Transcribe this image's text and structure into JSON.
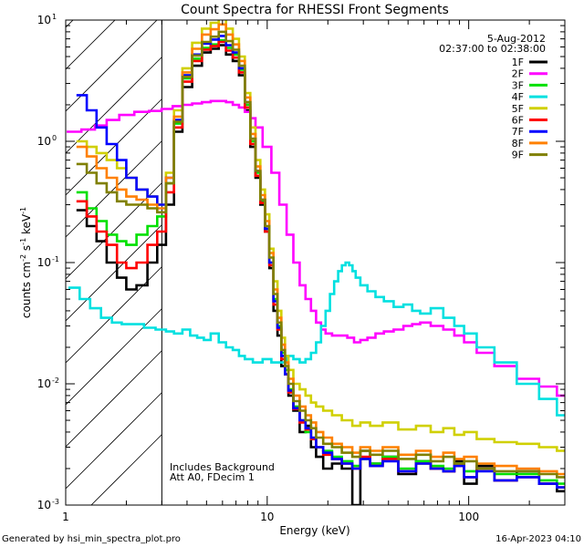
{
  "chart_data": {
    "type": "line",
    "title": "Count Spectra for RHESSI Front Segments",
    "xlabel": "Energy (keV)",
    "ylabel_parts": [
      "counts cm",
      "-2",
      " s",
      "-1",
      " keV",
      "-1"
    ],
    "x_scale": "log",
    "y_scale": "log",
    "xlim": [
      1,
      300
    ],
    "ylim": [
      0.001,
      10
    ],
    "x_tick_labels": [
      {
        "value": 1,
        "label": "1"
      },
      {
        "value": 10,
        "label": "10"
      },
      {
        "value": 100,
        "label": "100"
      }
    ],
    "y_tick_labels": [
      {
        "value": 10,
        "base": "10",
        "exp": "1"
      },
      {
        "value": 1,
        "base": "10",
        "exp": "0"
      },
      {
        "value": 0.1,
        "base": "10",
        "exp": "-1"
      },
      {
        "value": 0.01,
        "base": "10",
        "exp": "-2"
      },
      {
        "value": 0.001,
        "base": "10",
        "exp": "-3"
      }
    ],
    "hatched_region_xmax": 3,
    "date": "5-Aug-2012",
    "time_range": "02:37:00 to 02:38:00",
    "annotations": [
      "Includes Background",
      "Att A0, FDecim 1"
    ],
    "footer_left": "Generated by hsi_min_spectra_plot.pro",
    "footer_right": "16-Apr-2023 04:10",
    "legend_location": "top-right",
    "series": [
      {
        "name": "1F",
        "color": "#000000",
        "x": [
          1.2,
          1.35,
          1.5,
          1.7,
          1.9,
          2.1,
          2.4,
          2.7,
          3.0,
          3.3,
          3.6,
          4.0,
          4.5,
          5.0,
          5.5,
          6.0,
          6.5,
          7.0,
          7.5,
          8.0,
          8.5,
          9.0,
          9.5,
          10,
          10.5,
          11,
          11.5,
          12,
          12.5,
          13,
          14,
          15,
          16,
          17,
          18,
          20,
          22,
          25,
          28,
          30,
          35,
          40,
          50,
          60,
          70,
          80,
          90,
          100,
          120,
          150,
          200,
          250,
          300
        ],
        "y": [
          0.27,
          0.2,
          0.15,
          0.1,
          0.075,
          0.06,
          0.065,
          0.1,
          0.14,
          0.3,
          1.2,
          2.8,
          4.2,
          5.4,
          5.8,
          6.2,
          5.2,
          4.6,
          3.5,
          1.8,
          0.9,
          0.5,
          0.3,
          0.18,
          0.09,
          0.04,
          0.025,
          0.014,
          0.012,
          0.008,
          0.006,
          0.004,
          0.0045,
          0.003,
          0.0025,
          0.002,
          0.0022,
          0.002,
          0.001,
          0.0028,
          0.0022,
          0.0025,
          0.0018,
          0.0023,
          0.002,
          0.0019,
          0.0023,
          0.0015,
          0.0021,
          0.0016,
          0.0019,
          0.0015,
          0.0013
        ]
      },
      {
        "name": "2F",
        "color": "#ff00ff",
        "x": [
          1.1,
          1.3,
          1.5,
          1.7,
          2.0,
          2.4,
          2.8,
          3.2,
          3.6,
          4.0,
          4.5,
          5.0,
          5.5,
          6.0,
          6.5,
          7.0,
          7.5,
          8.0,
          8.5,
          9.0,
          10,
          11,
          12,
          13,
          14,
          15,
          16,
          17,
          18,
          19,
          20,
          22,
          24,
          26,
          28,
          30,
          33,
          36,
          40,
          45,
          50,
          55,
          60,
          70,
          80,
          90,
          100,
          120,
          150,
          200,
          250,
          300
        ],
        "y": [
          1.2,
          1.25,
          1.35,
          1.5,
          1.65,
          1.75,
          1.78,
          1.85,
          1.95,
          2.0,
          2.05,
          2.1,
          2.15,
          2.15,
          2.1,
          2.0,
          1.9,
          1.75,
          1.55,
          1.3,
          0.9,
          0.55,
          0.3,
          0.17,
          0.1,
          0.065,
          0.05,
          0.04,
          0.032,
          0.028,
          0.026,
          0.025,
          0.025,
          0.024,
          0.022,
          0.023,
          0.024,
          0.026,
          0.027,
          0.028,
          0.03,
          0.031,
          0.032,
          0.03,
          0.028,
          0.025,
          0.022,
          0.018,
          0.014,
          0.011,
          0.0095,
          0.008
        ]
      },
      {
        "name": "3F",
        "color": "#00e000",
        "x": [
          1.2,
          1.35,
          1.5,
          1.7,
          1.9,
          2.1,
          2.4,
          2.7,
          3.0,
          3.3,
          3.6,
          4.0,
          4.5,
          5.0,
          5.5,
          6.0,
          6.5,
          7.0,
          7.5,
          8.0,
          8.5,
          9.0,
          9.5,
          10,
          10.5,
          11,
          11.5,
          12,
          12.5,
          13,
          14,
          15,
          16,
          17,
          18,
          20,
          22,
          25,
          28,
          30,
          35,
          40,
          50,
          60,
          70,
          80,
          90,
          100,
          120,
          150,
          200,
          250,
          300
        ],
        "y": [
          0.38,
          0.28,
          0.22,
          0.17,
          0.15,
          0.14,
          0.17,
          0.2,
          0.24,
          0.45,
          1.4,
          3.3,
          4.8,
          5.9,
          6.3,
          6.8,
          5.9,
          5.2,
          3.9,
          2.0,
          1.0,
          0.55,
          0.32,
          0.19,
          0.1,
          0.05,
          0.03,
          0.018,
          0.013,
          0.009,
          0.0065,
          0.005,
          0.004,
          0.0035,
          0.003,
          0.0028,
          0.0025,
          0.0023,
          0.0021,
          0.0024,
          0.0022,
          0.0025,
          0.002,
          0.0023,
          0.0021,
          0.002,
          0.0022,
          0.0019,
          0.002,
          0.0018,
          0.0018,
          0.0016,
          0.0015
        ]
      },
      {
        "name": "4F",
        "color": "#00e0e0",
        "x": [
          1.1,
          1.25,
          1.4,
          1.6,
          1.8,
          2.0,
          2.3,
          2.6,
          3.0,
          3.3,
          3.6,
          4.0,
          4.3,
          4.7,
          5.0,
          5.5,
          6.0,
          6.5,
          7.0,
          7.5,
          8.0,
          9.0,
          10,
          11,
          12,
          13,
          14,
          15,
          16,
          17,
          18,
          19,
          20,
          21,
          22,
          23,
          24,
          25,
          26,
          27,
          28,
          30,
          33,
          36,
          40,
          45,
          50,
          55,
          60,
          70,
          80,
          90,
          100,
          120,
          150,
          200,
          250,
          300
        ],
        "y": [
          0.062,
          0.05,
          0.042,
          0.035,
          0.032,
          0.031,
          0.031,
          0.029,
          0.028,
          0.027,
          0.026,
          0.028,
          0.025,
          0.024,
          0.023,
          0.026,
          0.022,
          0.02,
          0.019,
          0.017,
          0.016,
          0.015,
          0.016,
          0.015,
          0.015,
          0.017,
          0.016,
          0.015,
          0.016,
          0.018,
          0.022,
          0.03,
          0.04,
          0.055,
          0.07,
          0.085,
          0.095,
          0.1,
          0.095,
          0.085,
          0.075,
          0.065,
          0.058,
          0.052,
          0.048,
          0.043,
          0.045,
          0.04,
          0.038,
          0.042,
          0.035,
          0.03,
          0.026,
          0.02,
          0.015,
          0.01,
          0.0075,
          0.0055
        ]
      },
      {
        "name": "5F",
        "color": "#d0d000",
        "x": [
          1.2,
          1.35,
          1.5,
          1.7,
          1.9,
          2.1,
          2.4,
          2.7,
          3.0,
          3.3,
          3.6,
          4.0,
          4.5,
          5.0,
          5.5,
          6.0,
          6.5,
          7.0,
          7.5,
          8.0,
          8.5,
          9.0,
          9.5,
          10,
          10.5,
          11,
          11.5,
          12,
          12.5,
          13,
          14,
          15,
          16,
          17,
          18,
          20,
          22,
          25,
          28,
          30,
          35,
          40,
          50,
          60,
          70,
          80,
          90,
          100,
          120,
          150,
          200,
          250,
          300
        ],
        "y": [
          1.0,
          0.9,
          0.8,
          0.7,
          0.6,
          0.5,
          0.4,
          0.35,
          0.3,
          0.55,
          1.8,
          4.0,
          6.5,
          8.5,
          9.5,
          10.5,
          8.5,
          7.0,
          5.0,
          2.5,
          1.3,
          0.7,
          0.4,
          0.25,
          0.13,
          0.07,
          0.04,
          0.024,
          0.017,
          0.013,
          0.01,
          0.009,
          0.008,
          0.007,
          0.0065,
          0.006,
          0.0055,
          0.005,
          0.0045,
          0.0048,
          0.0045,
          0.0048,
          0.0042,
          0.0045,
          0.004,
          0.0043,
          0.0038,
          0.004,
          0.0035,
          0.0033,
          0.0032,
          0.003,
          0.0028
        ]
      },
      {
        "name": "6F",
        "color": "#ff0000",
        "x": [
          1.2,
          1.35,
          1.5,
          1.7,
          1.9,
          2.1,
          2.4,
          2.7,
          3.0,
          3.3,
          3.6,
          4.0,
          4.5,
          5.0,
          5.5,
          6.0,
          6.5,
          7.0,
          7.5,
          8.0,
          8.5,
          9.0,
          9.5,
          10,
          10.5,
          11,
          11.5,
          12,
          12.5,
          13,
          14,
          15,
          16,
          17,
          18,
          20,
          22,
          25,
          28,
          30,
          35,
          40,
          50,
          60,
          70,
          80,
          90,
          100,
          120,
          150,
          200,
          250,
          300
        ],
        "y": [
          0.32,
          0.24,
          0.18,
          0.14,
          0.1,
          0.09,
          0.1,
          0.14,
          0.18,
          0.38,
          1.3,
          3.1,
          4.6,
          5.7,
          6.1,
          6.6,
          5.6,
          4.9,
          3.7,
          1.9,
          0.95,
          0.52,
          0.31,
          0.18,
          0.095,
          0.045,
          0.028,
          0.016,
          0.012,
          0.0085,
          0.0062,
          0.0048,
          0.0042,
          0.0035,
          0.003,
          0.0026,
          0.0024,
          0.0022,
          0.002,
          0.0025,
          0.0021,
          0.0024,
          0.0019,
          0.0022,
          0.002,
          0.0019,
          0.0021,
          0.0017,
          0.002,
          0.0016,
          0.0017,
          0.0015,
          0.0014
        ]
      },
      {
        "name": "7F",
        "color": "#0000ff",
        "x": [
          1.2,
          1.35,
          1.5,
          1.7,
          1.9,
          2.1,
          2.4,
          2.7,
          3.0,
          3.3,
          3.6,
          4.0,
          4.5,
          5.0,
          5.5,
          6.0,
          6.5,
          7.0,
          7.5,
          8.0,
          8.5,
          9.0,
          9.5,
          10,
          10.5,
          11,
          11.5,
          12,
          12.5,
          13,
          14,
          15,
          16,
          17,
          18,
          20,
          22,
          25,
          28,
          30,
          35,
          40,
          50,
          60,
          70,
          80,
          90,
          100,
          120,
          150,
          200,
          250,
          300
        ],
        "y": [
          2.4,
          1.8,
          1.3,
          0.95,
          0.7,
          0.5,
          0.4,
          0.35,
          0.3,
          0.5,
          1.5,
          3.5,
          5.2,
          6.4,
          6.9,
          7.4,
          6.2,
          5.4,
          4.0,
          2.1,
          1.05,
          0.57,
          0.33,
          0.19,
          0.1,
          0.048,
          0.029,
          0.017,
          0.012,
          0.0088,
          0.0063,
          0.005,
          0.0043,
          0.0036,
          0.003,
          0.0027,
          0.0024,
          0.0022,
          0.002,
          0.0024,
          0.0021,
          0.0023,
          0.0019,
          0.0022,
          0.002,
          0.0019,
          0.0021,
          0.0017,
          0.0019,
          0.0016,
          0.0017,
          0.0015,
          0.0014
        ]
      },
      {
        "name": "8F",
        "color": "#ff8000",
        "x": [
          1.2,
          1.35,
          1.5,
          1.7,
          1.9,
          2.1,
          2.4,
          2.7,
          3.0,
          3.3,
          3.6,
          4.0,
          4.5,
          5.0,
          5.5,
          6.0,
          6.5,
          7.0,
          7.5,
          8.0,
          8.5,
          9.0,
          9.5,
          10,
          10.5,
          11,
          11.5,
          12,
          12.5,
          13,
          14,
          15,
          16,
          17,
          18,
          20,
          22,
          25,
          28,
          30,
          35,
          40,
          50,
          60,
          70,
          80,
          90,
          100,
          120,
          150,
          200,
          250,
          300
        ],
        "y": [
          0.9,
          0.75,
          0.6,
          0.5,
          0.4,
          0.35,
          0.33,
          0.3,
          0.28,
          0.5,
          1.6,
          3.7,
          5.8,
          7.6,
          8.4,
          9.2,
          7.6,
          6.3,
          4.6,
          2.3,
          1.15,
          0.62,
          0.36,
          0.22,
          0.12,
          0.06,
          0.035,
          0.021,
          0.015,
          0.011,
          0.008,
          0.0065,
          0.0055,
          0.0048,
          0.004,
          0.0036,
          0.0032,
          0.003,
          0.0027,
          0.003,
          0.0028,
          0.003,
          0.0026,
          0.0028,
          0.0025,
          0.0027,
          0.0024,
          0.0025,
          0.0022,
          0.0021,
          0.002,
          0.0019,
          0.0018
        ]
      },
      {
        "name": "9F",
        "color": "#808000",
        "x": [
          1.2,
          1.35,
          1.5,
          1.7,
          1.9,
          2.1,
          2.4,
          2.7,
          3.0,
          3.3,
          3.6,
          4.0,
          4.5,
          5.0,
          5.5,
          6.0,
          6.5,
          7.0,
          7.5,
          8.0,
          8.5,
          9.0,
          9.5,
          10,
          10.5,
          11,
          11.5,
          12,
          12.5,
          13,
          14,
          15,
          16,
          17,
          18,
          20,
          22,
          25,
          28,
          30,
          35,
          40,
          50,
          60,
          70,
          80,
          90,
          100,
          120,
          150,
          200,
          250,
          300
        ],
        "y": [
          0.65,
          0.55,
          0.45,
          0.38,
          0.32,
          0.3,
          0.3,
          0.28,
          0.26,
          0.45,
          1.45,
          3.4,
          5.1,
          6.6,
          7.3,
          8.0,
          6.7,
          5.7,
          4.2,
          2.1,
          1.05,
          0.57,
          0.33,
          0.2,
          0.11,
          0.055,
          0.032,
          0.019,
          0.014,
          0.01,
          0.0072,
          0.006,
          0.005,
          0.0043,
          0.0036,
          0.0032,
          0.003,
          0.0027,
          0.0025,
          0.0028,
          0.0026,
          0.0028,
          0.0024,
          0.0026,
          0.0023,
          0.0025,
          0.0022,
          0.0023,
          0.002,
          0.0019,
          0.0019,
          0.0018,
          0.0017
        ]
      }
    ]
  }
}
